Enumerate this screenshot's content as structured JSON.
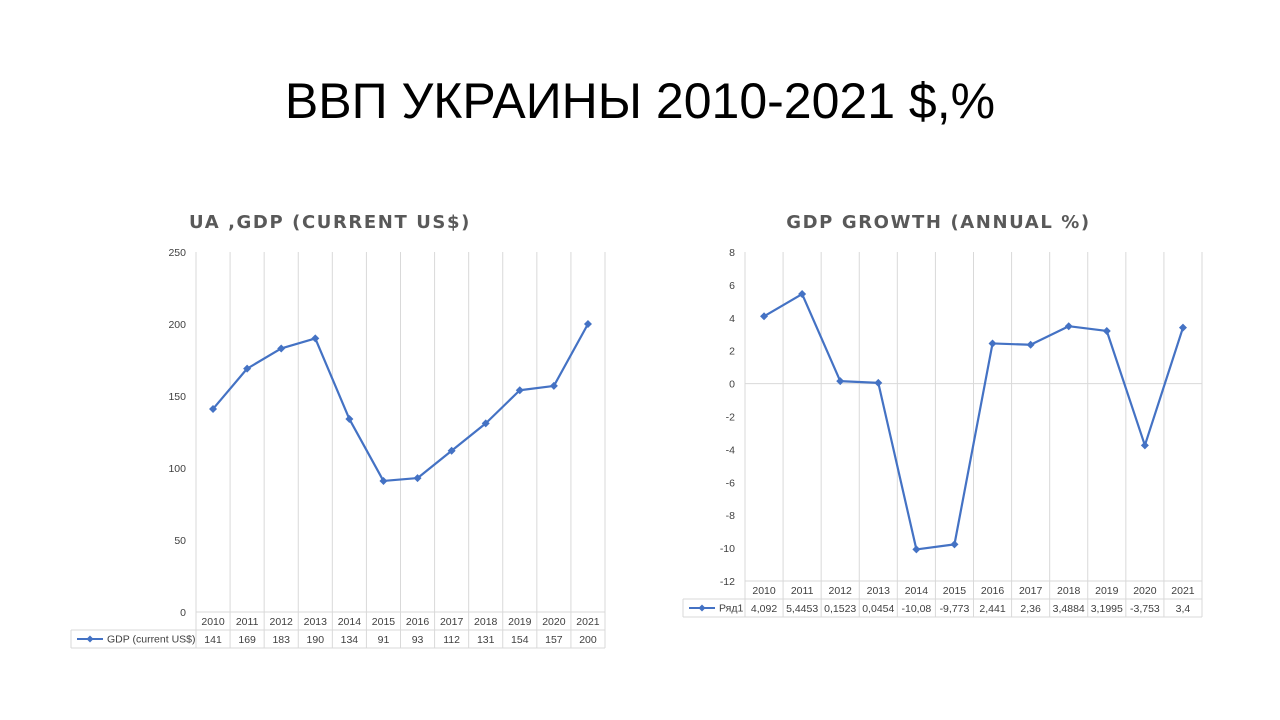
{
  "slide": {
    "title": "ВВП УКРАИНЫ 2010-2021 $,%"
  },
  "colors": {
    "series": "#4472c4",
    "grid": "#d9d9d9",
    "text": "#595959"
  },
  "chart_data": [
    {
      "type": "line",
      "title": "UA ,GDP (CURRENT US$)",
      "x": [
        "2010",
        "2011",
        "2012",
        "2013",
        "2014",
        "2015",
        "2016",
        "2017",
        "2018",
        "2019",
        "2020",
        "2021"
      ],
      "series": [
        {
          "name": "GDP (current US$)",
          "values": [
            141,
            169,
            183,
            190,
            134,
            91,
            93,
            112,
            131,
            154,
            157,
            200
          ]
        }
      ],
      "table_values": [
        "141",
        "169",
        "183",
        "190",
        "134",
        "91",
        "93",
        "112",
        "131",
        "154",
        "157",
        "200"
      ],
      "ylim": [
        0,
        250
      ],
      "yticks": [
        0,
        50,
        100,
        150,
        200,
        250
      ],
      "grid": "vertical",
      "legend": "data-table"
    },
    {
      "type": "line",
      "title": "GDP GROWTH (ANNUAL %)",
      "x": [
        "2010",
        "2011",
        "2012",
        "2013",
        "2014",
        "2015",
        "2016",
        "2017",
        "2018",
        "2019",
        "2020",
        "2021"
      ],
      "series": [
        {
          "name": "Ряд1",
          "values": [
            4.092,
            5.4453,
            0.1523,
            0.0454,
            -10.08,
            -9.773,
            2.441,
            2.36,
            3.4884,
            3.1995,
            -3.753,
            3.4
          ]
        }
      ],
      "table_values": [
        "4,092",
        "5,4453",
        "0,1523",
        "0,0454",
        "-10,08",
        "-9,773",
        "2,441",
        "2,36",
        "3,4884",
        "3,1995",
        "-3,753",
        "3,4"
      ],
      "ylim": [
        -12,
        8
      ],
      "yticks": [
        -12,
        -10,
        -8,
        -6,
        -4,
        -2,
        0,
        2,
        4,
        6,
        8
      ],
      "grid": "vertical",
      "legend": "data-table"
    }
  ]
}
